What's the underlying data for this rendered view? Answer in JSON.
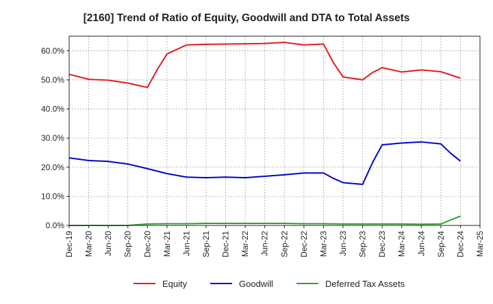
{
  "chart_data": {
    "type": "line",
    "title": "[2160]  Trend of Ratio of Equity, Goodwill and DTA to Total Assets",
    "xlabel": "",
    "ylabel": "",
    "ylim": [
      0,
      65
    ],
    "yticks": [
      0,
      10,
      20,
      30,
      40,
      50,
      60
    ],
    "ytick_labels": [
      "0.0%",
      "10.0%",
      "20.0%",
      "30.0%",
      "40.0%",
      "50.0%",
      "60.0%"
    ],
    "x_tick_labels": [
      "Dec-19",
      "Mar-20",
      "Jun-20",
      "Sep-20",
      "Dec-20",
      "Mar-21",
      "Jun-21",
      "Sep-21",
      "Dec-21",
      "Mar-22",
      "Jun-22",
      "Sep-22",
      "Dec-22",
      "Mar-23",
      "Jun-23",
      "Sep-23",
      "Dec-23",
      "Mar-24",
      "Jun-24",
      "Sep-24",
      "Dec-24",
      "Mar-25"
    ],
    "grid": true,
    "legend_position": "bottom",
    "series": [
      {
        "name": "Equity",
        "color": "#e31a1c",
        "points": [
          [
            0,
            51.9
          ],
          [
            1,
            50.2
          ],
          [
            2,
            49.9
          ],
          [
            3,
            48.9
          ],
          [
            4,
            47.4
          ],
          [
            4.5,
            53.5
          ],
          [
            5,
            58.9
          ],
          [
            6,
            62.0
          ],
          [
            7,
            62.2
          ],
          [
            8,
            62.3
          ],
          [
            9,
            62.4
          ],
          [
            10,
            62.5
          ],
          [
            11,
            62.9
          ],
          [
            12,
            62.0
          ],
          [
            13,
            62.3
          ],
          [
            13.5,
            56.0
          ],
          [
            14,
            51.0
          ],
          [
            15,
            50.0
          ],
          [
            15.5,
            52.5
          ],
          [
            16,
            54.2
          ],
          [
            17,
            52.7
          ],
          [
            18,
            53.4
          ],
          [
            19,
            52.8
          ],
          [
            20,
            50.6
          ]
        ]
      },
      {
        "name": "Goodwill",
        "color": "#0000cc",
        "points": [
          [
            0,
            23.2
          ],
          [
            1,
            22.3
          ],
          [
            2,
            22.0
          ],
          [
            3,
            21.1
          ],
          [
            4,
            19.5
          ],
          [
            5,
            17.8
          ],
          [
            6,
            16.6
          ],
          [
            7,
            16.4
          ],
          [
            8,
            16.6
          ],
          [
            9,
            16.4
          ],
          [
            10,
            16.9
          ],
          [
            11,
            17.4
          ],
          [
            12,
            18.0
          ],
          [
            13,
            18.0
          ],
          [
            13.5,
            16.2
          ],
          [
            14,
            14.7
          ],
          [
            15,
            14.1
          ],
          [
            15.5,
            21.5
          ],
          [
            16,
            27.7
          ],
          [
            17,
            28.3
          ],
          [
            18,
            28.7
          ],
          [
            19,
            28.0
          ],
          [
            19.5,
            24.8
          ],
          [
            20,
            22.1
          ]
        ]
      },
      {
        "name": "Deferred Tax Assets",
        "color": "#2ca02c",
        "points": [
          [
            0,
            0.0
          ],
          [
            1,
            0.0
          ],
          [
            2,
            0.0
          ],
          [
            3,
            0.0
          ],
          [
            4,
            0.5
          ],
          [
            5,
            0.6
          ],
          [
            6,
            0.6
          ],
          [
            7,
            0.7
          ],
          [
            8,
            0.7
          ],
          [
            9,
            0.7
          ],
          [
            10,
            0.7
          ],
          [
            11,
            0.7
          ],
          [
            12,
            0.6
          ],
          [
            13,
            0.6
          ],
          [
            14,
            0.5
          ],
          [
            15,
            0.5
          ],
          [
            16,
            0.5
          ],
          [
            17,
            0.5
          ],
          [
            18,
            0.4
          ],
          [
            19,
            0.5
          ],
          [
            20,
            3.2
          ]
        ]
      }
    ]
  }
}
